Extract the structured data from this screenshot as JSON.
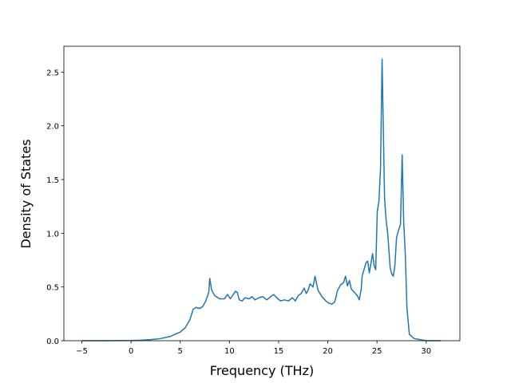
{
  "chart_data": {
    "type": "line",
    "x_label": "Frequency (THz)",
    "y_label": "Density of States",
    "x": [
      -5,
      -3,
      0,
      1,
      2,
      3,
      4,
      5,
      5.5,
      6,
      6.3,
      6.6,
      7,
      7.3,
      7.6,
      7.9,
      8.0,
      8.2,
      8.5,
      9,
      9.5,
      9.8,
      10.1,
      10.4,
      10.6,
      10.8,
      11,
      11.3,
      11.6,
      12,
      12.3,
      12.6,
      13,
      13.4,
      13.8,
      14.2,
      14.5,
      14.8,
      15.2,
      15.6,
      16,
      16.4,
      16.7,
      17,
      17.3,
      17.6,
      17.8,
      18,
      18.2,
      18.5,
      18.7,
      19,
      19.4,
      19.8,
      20.1,
      20.4,
      20.7,
      21,
      21.3,
      21.6,
      21.8,
      22,
      22.2,
      22.4,
      22.7,
      23,
      23.2,
      23.4,
      23.49,
      23.9,
      24.06,
      24.22,
      24.55,
      24.71,
      24.87,
      25.03,
      25.2,
      25.36,
      25.52,
      25.77,
      25.93,
      26.09,
      26.34,
      26.5,
      26.66,
      26.82,
      26.99,
      27.23,
      27.39,
      27.56,
      27.72,
      27.88,
      28.05,
      28.29,
      28.78,
      30,
      31.5
    ],
    "series": [
      {
        "color": "#1f77b4",
        "values": [
          0,
          0,
          0.002,
          0.005,
          0.01,
          0.02,
          0.04,
          0.08,
          0.12,
          0.2,
          0.29,
          0.31,
          0.3,
          0.32,
          0.37,
          0.45,
          0.58,
          0.47,
          0.42,
          0.39,
          0.39,
          0.43,
          0.39,
          0.43,
          0.46,
          0.45,
          0.38,
          0.37,
          0.4,
          0.39,
          0.41,
          0.38,
          0.4,
          0.41,
          0.38,
          0.41,
          0.43,
          0.4,
          0.37,
          0.38,
          0.37,
          0.4,
          0.37,
          0.42,
          0.44,
          0.49,
          0.44,
          0.47,
          0.53,
          0.5,
          0.6,
          0.47,
          0.41,
          0.37,
          0.35,
          0.34,
          0.36,
          0.47,
          0.52,
          0.54,
          0.6,
          0.51,
          0.56,
          0.48,
          0.45,
          0.42,
          0.38,
          0.48,
          0.6,
          0.73,
          0.74,
          0.63,
          0.81,
          0.7,
          0.66,
          1.2,
          1.3,
          1.6,
          2.62,
          1.33,
          1.12,
          1.0,
          0.68,
          0.62,
          0.6,
          0.7,
          0.96,
          1.04,
          1.08,
          1.73,
          1.1,
          0.8,
          0.3,
          0.06,
          0.02,
          0,
          0
        ]
      }
    ],
    "xlim": [
      -6.83,
      33.43
    ],
    "ylim": [
      0,
      2.74
    ],
    "xticks": [
      {
        "value": -5,
        "label": "−5"
      },
      0,
      5,
      10,
      15,
      20,
      25,
      30
    ],
    "yticks": [
      {
        "value": 0,
        "label": "0.0"
      },
      {
        "value": 0.5,
        "label": "0.5"
      },
      {
        "value": 1,
        "label": "1.0"
      },
      {
        "value": 1.5,
        "label": "1.5"
      },
      {
        "value": 2,
        "label": "2.0"
      },
      {
        "value": 2.5,
        "label": "2.5"
      }
    ]
  }
}
